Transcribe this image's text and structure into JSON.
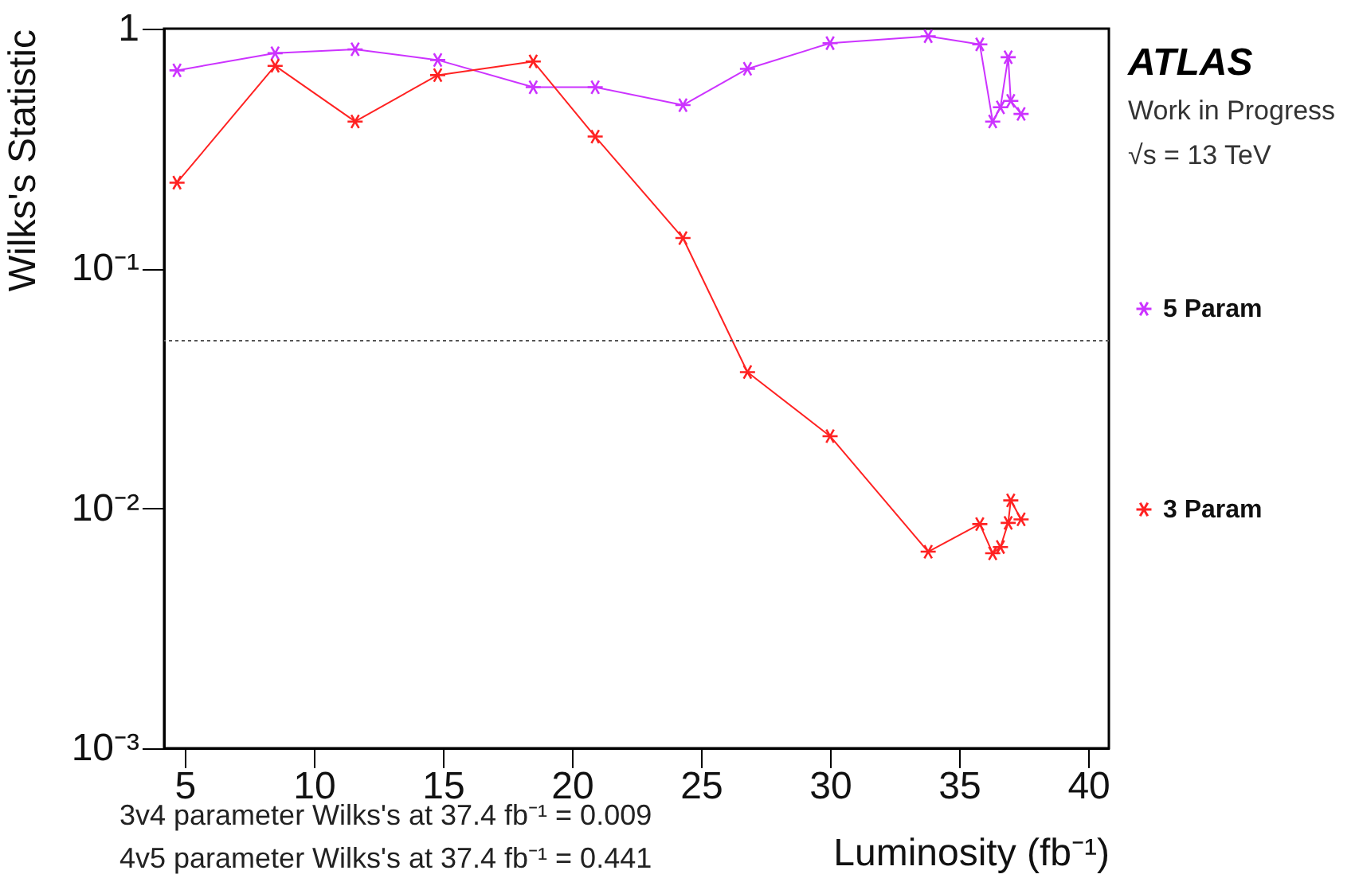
{
  "chart_data": {
    "type": "line",
    "xlabel": "Luminosity (fb⁻¹)",
    "ylabel": "Wilks's Statistic",
    "annotations": [
      "ATLAS",
      "Work in Progress",
      "√s = 13 TeV",
      "3v4 parameter Wilks's at 37.4 fb⁻¹ = 0.009",
      "4v5 parameter Wilks's at 37.4 fb⁻¹ = 0.441"
    ],
    "x": [
      4.7,
      8.5,
      11.6,
      14.8,
      18.5,
      20.9,
      24.3,
      26.8,
      30.0,
      33.8,
      35.8,
      36.3,
      36.6,
      36.9,
      37.0,
      37.4
    ],
    "series": [
      {
        "name": "5 Param",
        "color": "#cc33ff",
        "values": [
          0.67,
          0.79,
          0.82,
          0.74,
          0.57,
          0.57,
          0.48,
          0.68,
          0.87,
          0.93,
          0.86,
          0.41,
          0.47,
          0.76,
          0.5,
          0.441
        ]
      },
      {
        "name": "3 Param",
        "color": "#ff2222",
        "values": [
          0.228,
          0.7,
          0.41,
          0.64,
          0.73,
          0.355,
          0.134,
          0.037,
          0.02,
          0.0066,
          0.0086,
          0.0065,
          0.0069,
          0.0087,
          0.0108,
          0.009
        ]
      }
    ],
    "log": "y",
    "xlim": [
      4.2,
      40.8
    ],
    "ylim": [
      0.001,
      1
    ],
    "xticks": [
      5,
      10,
      15,
      20,
      25,
      30,
      35,
      40
    ],
    "yticks": [
      {
        "value": 0.001,
        "label": "10⁻³"
      },
      {
        "value": 0.01,
        "label": "10⁻²"
      },
      {
        "value": 0.1,
        "label": "10⁻¹"
      },
      1
    ],
    "ref_lines": [
      {
        "axis": "y",
        "value": 0.05,
        "color": "#555555",
        "line_style": "dotted"
      }
    ],
    "marker": "cross",
    "legend": "right",
    "grid": false
  }
}
